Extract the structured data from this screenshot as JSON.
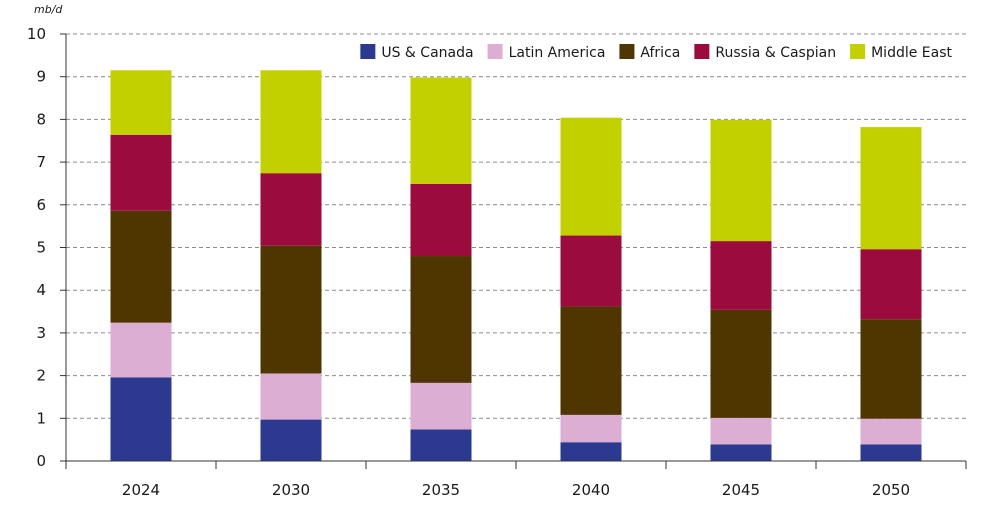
{
  "chart_data": {
    "type": "bar",
    "stacked": true,
    "unit_label": "mb/d",
    "categories": [
      "2024",
      "2030",
      "2035",
      "2040",
      "2045",
      "2050"
    ],
    "ylim": [
      0,
      10
    ],
    "yticks": [
      "0",
      "1",
      "2",
      "3",
      "4",
      "5",
      "6",
      "7",
      "8",
      "9",
      "10"
    ],
    "grid": true,
    "legend_position": "top-right",
    "series": [
      {
        "name": "US & Canada",
        "color": "#2b3990",
        "values": [
          1.96,
          0.97,
          0.74,
          0.44,
          0.39,
          0.39
        ]
      },
      {
        "name": "Latin America",
        "color": "#dcaed3",
        "values": [
          1.28,
          1.08,
          1.09,
          0.64,
          0.62,
          0.6
        ]
      },
      {
        "name": "Africa",
        "color": "#4f3500",
        "values": [
          2.62,
          2.99,
          2.97,
          2.54,
          2.53,
          2.33
        ]
      },
      {
        "name": "Russia & Caspian",
        "color": "#9b0b3d",
        "values": [
          1.78,
          1.7,
          1.69,
          1.66,
          1.61,
          1.64
        ]
      },
      {
        "name": "Middle East",
        "color": "#c3d000",
        "values": [
          1.51,
          2.41,
          2.49,
          2.76,
          2.84,
          2.86
        ]
      }
    ]
  }
}
